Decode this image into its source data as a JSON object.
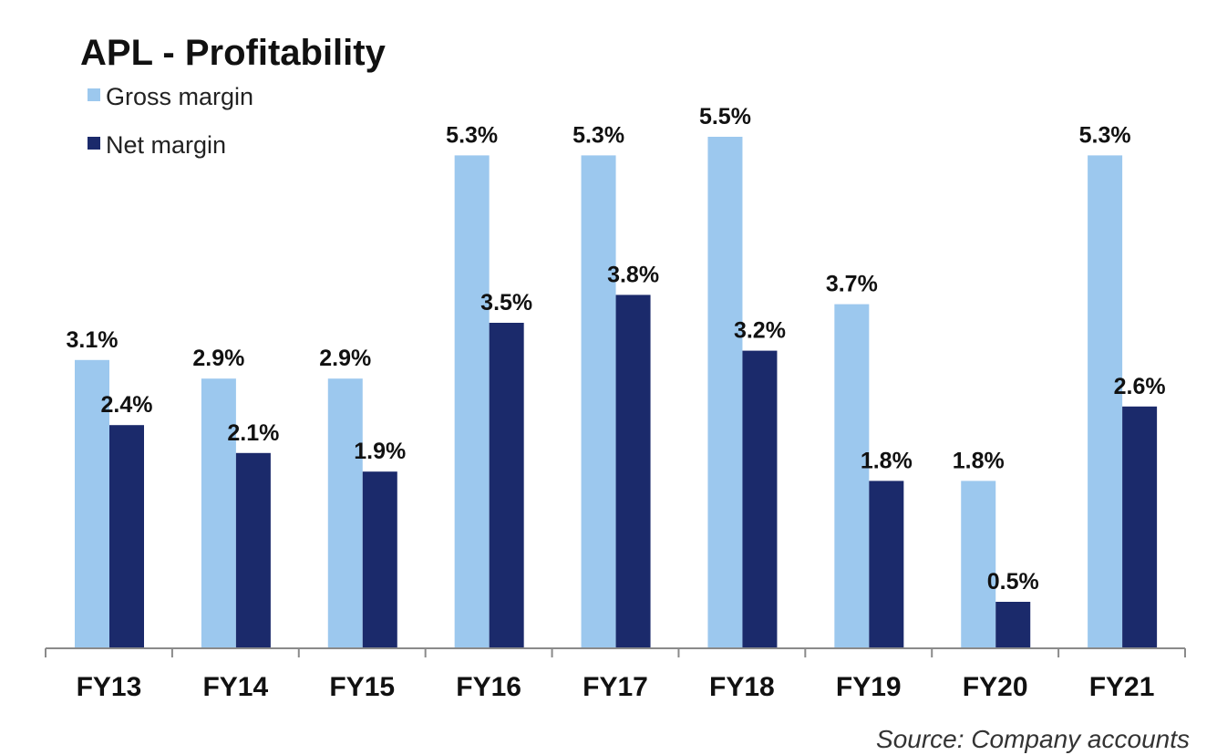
{
  "chart_data": {
    "type": "bar",
    "title": "APL - Profitability",
    "categories": [
      "FY13",
      "FY14",
      "FY15",
      "FY16",
      "FY17",
      "FY18",
      "FY19",
      "FY20",
      "FY21"
    ],
    "series": [
      {
        "name": "Gross margin",
        "color": "#9cc8ee",
        "values": [
          3.1,
          2.9,
          2.9,
          5.3,
          5.3,
          5.5,
          3.7,
          1.8,
          5.3
        ],
        "labels": [
          "3.1%",
          "2.9%",
          "2.9%",
          "5.3%",
          "5.3%",
          "5.5%",
          "3.7%",
          "1.8%",
          "5.3%"
        ]
      },
      {
        "name": "Net margin",
        "color": "#1b2a6b",
        "values": [
          2.4,
          2.1,
          1.9,
          3.5,
          3.8,
          3.2,
          1.8,
          0.5,
          2.6
        ],
        "labels": [
          "2.4%",
          "2.1%",
          "1.9%",
          "3.5%",
          "3.8%",
          "3.2%",
          "1.8%",
          "0.5%",
          "2.6%"
        ]
      }
    ],
    "ylim": [
      0,
      5.5
    ],
    "grid": false,
    "legend_position": "top-left",
    "source_note": "Source: Company accounts"
  }
}
